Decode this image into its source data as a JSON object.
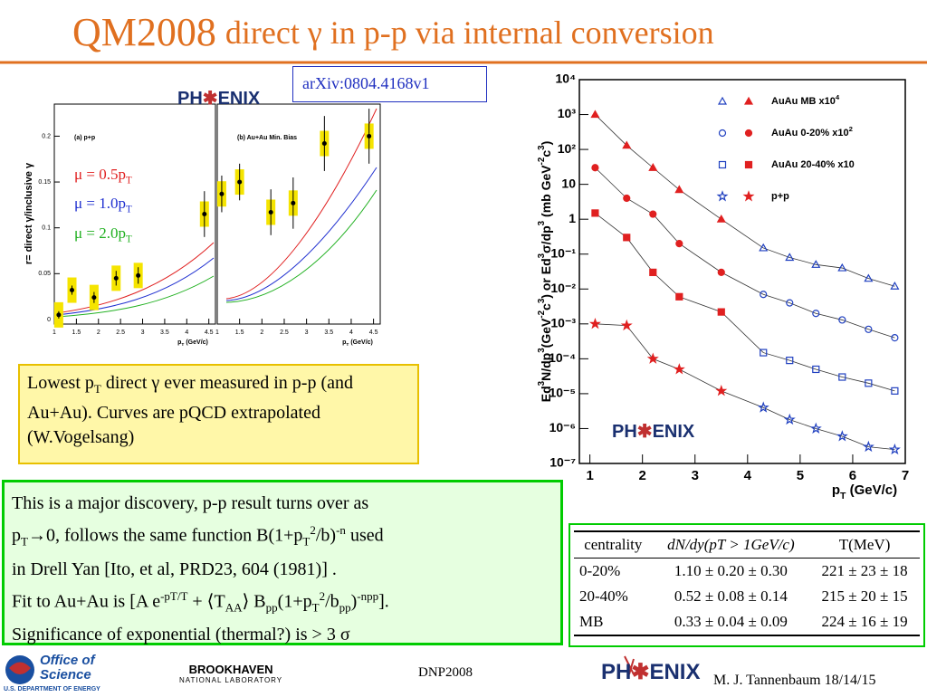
{
  "title": {
    "main": "QM2008",
    "rest": "direct γ in p-p via internal conversion"
  },
  "arxiv": "arXiv:0804.4168v1",
  "left_plot": {
    "ylabel": "r= direct γ/inclusive γ",
    "ylim": [
      -0.005,
      0.235
    ],
    "yticks": [
      0,
      0.05,
      0.1,
      0.15,
      0.2
    ],
    "xlim": [
      1,
      4.65
    ],
    "xlabel": [
      {
        "t": "p"
      },
      {
        "sub": "T"
      },
      {
        "t": " (GeV/c)"
      }
    ],
    "panels": [
      {
        "label": "(a) p+p",
        "xticks": [
          1,
          1.5,
          2,
          2.5,
          3,
          3.5,
          4,
          4.5
        ],
        "x": [
          1.1,
          1.4,
          1.9,
          2.4,
          2.9,
          4.4
        ],
        "y": [
          0.005,
          0.032,
          0.024,
          0.045,
          0.048,
          0.115
        ],
        "err": [
          0.004,
          0.005,
          0.006,
          0.008,
          0.009,
          0.025
        ]
      },
      {
        "label": "(b) Au+Au Min. Bias",
        "xticks": [
          1,
          1.5,
          2,
          2.5,
          3,
          3.5,
          4,
          4.5
        ],
        "x": [
          1.1,
          1.5,
          2.2,
          2.7,
          3.4,
          4.4
        ],
        "y": [
          0.137,
          0.15,
          0.117,
          0.127,
          0.192,
          0.2
        ],
        "err": [
          0.02,
          0.02,
          0.025,
          0.028,
          0.03,
          0.03
        ]
      }
    ],
    "legend": [
      {
        "color": "#e02020",
        "text": [
          {
            "t": "μ = 0.5p"
          },
          {
            "sub": "T"
          }
        ]
      },
      {
        "color": "#2030d0",
        "text": [
          {
            "t": "μ = 1.0p"
          },
          {
            "sub": "T"
          }
        ]
      },
      {
        "color": "#20b020",
        "text": [
          {
            "t": "μ = 2.0p"
          },
          {
            "sub": "T"
          }
        ]
      }
    ]
  },
  "phenix_logo": [
    "PH",
    "ENIX"
  ],
  "right_plot": {
    "ylabel": [
      {
        "t": "Ed"
      },
      {
        "sup": "3"
      },
      {
        "t": "N/dp"
      },
      {
        "sup": "3"
      },
      {
        "t": "(GeV"
      },
      {
        "sup": "-2"
      },
      {
        "t": "c"
      },
      {
        "sup": "3"
      },
      {
        "t": ") or Ed"
      },
      {
        "sup": "3"
      },
      {
        "t": "σ/dp"
      },
      {
        "sup": "3"
      },
      {
        "t": " (mb GeV"
      },
      {
        "sup": "-2"
      },
      {
        "t": "c"
      },
      {
        "sup": "3"
      },
      {
        "t": ")"
      }
    ],
    "xlabel": [
      {
        "t": "p"
      },
      {
        "sub": "T"
      },
      {
        "t": " (GeV/c)"
      }
    ],
    "log_y": true,
    "ylim": [
      1e-07,
      10000.0
    ],
    "yticks": [
      {
        "value": 10000.0,
        "label": "10⁴"
      },
      {
        "value": 1000.0,
        "label": "10³"
      },
      {
        "value": 100.0,
        "label": "10²"
      },
      10,
      1,
      {
        "value": 0.1,
        "label": "10⁻¹"
      },
      {
        "value": 0.01,
        "label": "10⁻²"
      },
      {
        "value": 0.001,
        "label": "10⁻³"
      },
      {
        "value": 0.0001,
        "label": "10⁻⁴"
      },
      {
        "value": 1e-05,
        "label": "10⁻⁵"
      },
      {
        "value": 1e-06,
        "label": "10⁻⁶"
      },
      {
        "value": 1e-07,
        "label": "10⁻⁷"
      }
    ],
    "xlim": [
      0.8,
      7
    ],
    "xticks": [
      1,
      2,
      3,
      4,
      5,
      6,
      7
    ],
    "x": [
      1.1,
      1.7,
      2.2,
      2.7,
      3.5,
      4.3,
      4.8,
      5.3,
      5.8,
      6.3,
      6.8
    ],
    "series": [
      {
        "name": [
          {
            "t": "AuAu MB x10"
          },
          {
            "sup": "4"
          }
        ],
        "marker": "triangle",
        "values": [
          1000,
          130,
          30,
          7,
          1,
          0.15,
          0.08,
          0.05,
          0.04,
          0.02,
          0.012
        ]
      },
      {
        "name": [
          {
            "t": "AuAu 0-20% x10"
          },
          {
            "sup": "2"
          }
        ],
        "marker": "circle",
        "values": [
          30,
          4,
          1.4,
          0.2,
          0.03,
          0.007,
          0.004,
          0.002,
          0.0013,
          0.0007,
          0.0004
        ]
      },
      {
        "name": [
          {
            "t": "AuAu 20-40% x10"
          }
        ],
        "marker": "square",
        "values": [
          1.5,
          0.3,
          0.03,
          0.006,
          0.0022,
          0.00015,
          9e-05,
          5e-05,
          3e-05,
          2e-05,
          1.2e-05
        ]
      },
      {
        "name": [
          {
            "t": "p+p"
          }
        ],
        "marker": "star",
        "values": [
          0.001,
          0.0009,
          0.0001,
          5e-05,
          1.2e-05,
          4e-06,
          1.8e-06,
          1e-06,
          6e-07,
          3e-07,
          2.5e-07
        ]
      }
    ]
  },
  "box1": [
    {
      "t": "Lowest p"
    },
    {
      "sub": "T"
    },
    {
      "t": " direct γ ever measured in p-p (and Au+Au). Curves are pQCD extrapolated (W.Vogelsang)"
    }
  ],
  "box2": [
    [
      {
        "t": "This is a major discovery, p-p result turns over as"
      }
    ],
    [
      {
        "t": "p"
      },
      {
        "sub": "T"
      },
      {
        "t": "→0, follows the same function B(1+p"
      },
      {
        "sub": "T"
      },
      {
        "sup": "2"
      },
      {
        "t": "/b)"
      },
      {
        "sup": "-n"
      },
      {
        "t": " used"
      }
    ],
    [
      {
        "t": "in Drell Yan [Ito, et al, PRD23, 604 (1981)] ."
      }
    ],
    [
      {
        "t": "Fit to Au+Au is [A e"
      },
      {
        "sup": "-pT/T"
      },
      {
        "t": " + ⟨T"
      },
      {
        "sub": "AA"
      },
      {
        "t": "⟩ B"
      },
      {
        "sub": "pp"
      },
      {
        "t": "(1+p"
      },
      {
        "sub": "T"
      },
      {
        "sup": "2"
      },
      {
        "t": "/b"
      },
      {
        "sub": "pp"
      },
      {
        "t": ")"
      },
      {
        "sup": "-npp"
      },
      {
        "t": "]."
      }
    ],
    [
      {
        "t": "Significance of exponential (thermal?) is > 3 σ"
      }
    ]
  ],
  "table": {
    "header": [
      "centrality",
      "dN/dy(pT > 1GeV/c)",
      "T(MeV)"
    ],
    "rows": [
      [
        "0-20%",
        "1.10 ± 0.20 ± 0.30",
        "221 ± 23 ± 18"
      ],
      [
        "20-40%",
        "0.52 ± 0.08 ± 0.14",
        "215 ± 20 ± 15"
      ],
      [
        "MB",
        "0.33 ± 0.04 ± 0.09",
        "224 ± 16 ± 19"
      ]
    ]
  },
  "footer": {
    "office": [
      "Office of",
      "Science"
    ],
    "doe": "U.S. DEPARTMENT OF ENERGY",
    "bnl": [
      "BROOKHAVEN",
      "NATIONAL LABORATORY"
    ],
    "conf": "DNP2008",
    "author": "M. J. Tannenbaum 18/14/15"
  }
}
